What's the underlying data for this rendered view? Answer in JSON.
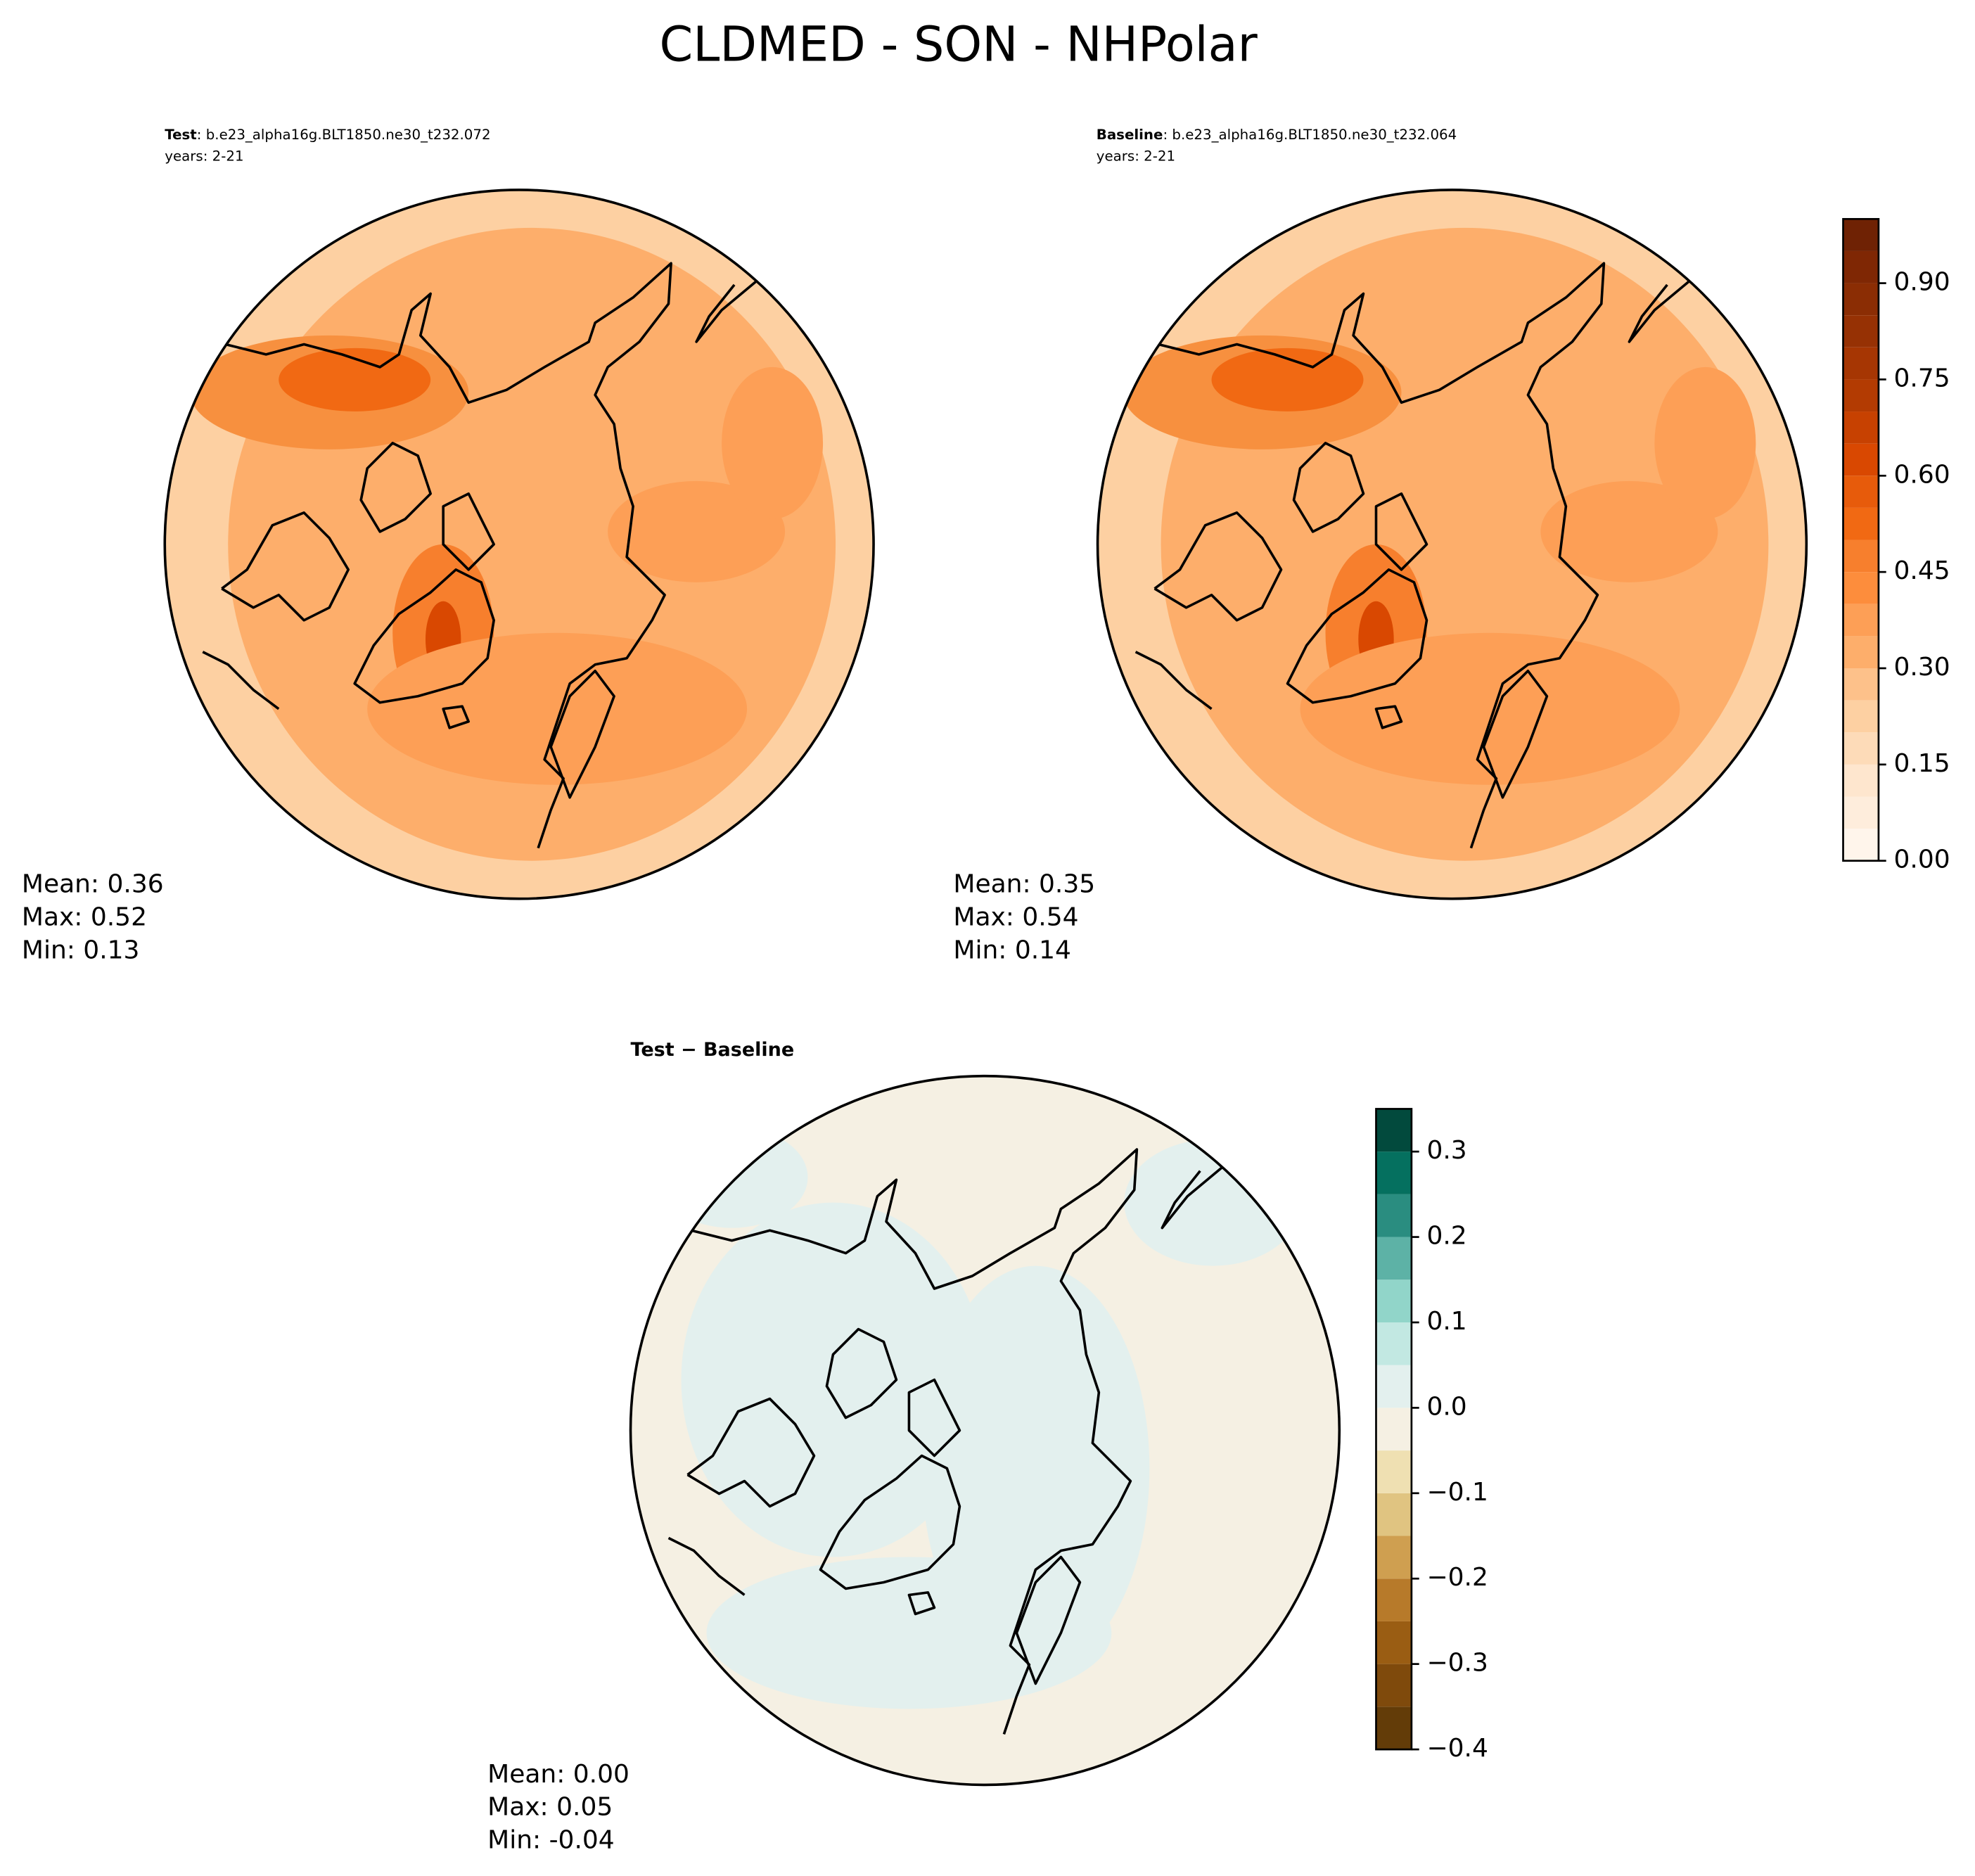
{
  "title": "CLDMED - SON - NHPolar",
  "panels": [
    {
      "case_label": "Test",
      "case_name": ": b.e23_alpha16g.BLT1850.ne30_t232.072",
      "years": "years: 2-21",
      "stats": [
        "Mean:  0.36",
        "Max:  0.52",
        "Min:  0.13"
      ]
    },
    {
      "case_label": "Baseline",
      "case_name": ": b.e23_alpha16g.BLT1850.ne30_t232.064",
      "years": "years: 2-21",
      "stats": [
        "Mean:  0.35",
        "Max:  0.54",
        "Min:  0.14"
      ]
    },
    {
      "case_label": "Test − Baseline",
      "stats": [
        "Mean:  0.00",
        "Max:  0.05",
        "Min: -0.04"
      ]
    }
  ],
  "colorbars": [
    {
      "lim": [
        0,
        1
      ],
      "levels": [
        0,
        0.05,
        0.1,
        0.15,
        0.2,
        0.25,
        0.3,
        0.35,
        0.4,
        0.45,
        0.5,
        0.55,
        0.6,
        0.65,
        0.7,
        0.75,
        0.8,
        0.85,
        0.9,
        0.95,
        1.0
      ],
      "colors": [
        "#fff5eb",
        "#feeddc",
        "#fee6ce",
        "#fddbb8",
        "#fdd0a2",
        "#fdc18a",
        "#fdae6b",
        "#fd9f56",
        "#fd8d3c",
        "#f77f2d",
        "#f16913",
        "#e75b0b",
        "#d94801",
        "#c74101",
        "#b33b02",
        "#a63603",
        "#963104",
        "#8b2d04",
        "#7f2704",
        "#6f2204"
      ],
      "ticks": [
        {
          "value": 0,
          "label": "0.00"
        },
        {
          "value": 0.15,
          "label": "0.15"
        },
        {
          "value": 0.3,
          "label": "0.30"
        },
        {
          "value": 0.45,
          "label": "0.45"
        },
        {
          "value": 0.6,
          "label": "0.60"
        },
        {
          "value": 0.75,
          "label": "0.75"
        },
        {
          "value": 0.9,
          "label": "0.90"
        }
      ]
    },
    {
      "lim": [
        -0.4,
        0.35
      ],
      "levels": [
        -0.4,
        -0.35,
        -0.3,
        -0.25,
        -0.2,
        -0.15,
        -0.1,
        -0.05,
        0,
        0.05,
        0.1,
        0.15,
        0.2,
        0.25,
        0.3,
        0.35
      ],
      "colors": [
        "#633c08",
        "#7f4a0c",
        "#9a5d13",
        "#b77a2a",
        "#cf9f50",
        "#e0c481",
        "#efe0b2",
        "#f5f0e3",
        "#e3f0ee",
        "#c2e8e2",
        "#91d5c9",
        "#5db2a6",
        "#2a8d80",
        "#05705f",
        "#024a3d"
      ],
      "ticks": [
        {
          "value": -0.4,
          "label": "−0.4"
        },
        {
          "value": -0.3,
          "label": "−0.3"
        },
        {
          "value": -0.2,
          "label": "−0.2"
        },
        {
          "value": -0.1,
          "label": "−0.1"
        },
        {
          "value": 0,
          "label": "0.0"
        },
        0.1,
        0.2,
        0.3
      ]
    }
  ]
}
